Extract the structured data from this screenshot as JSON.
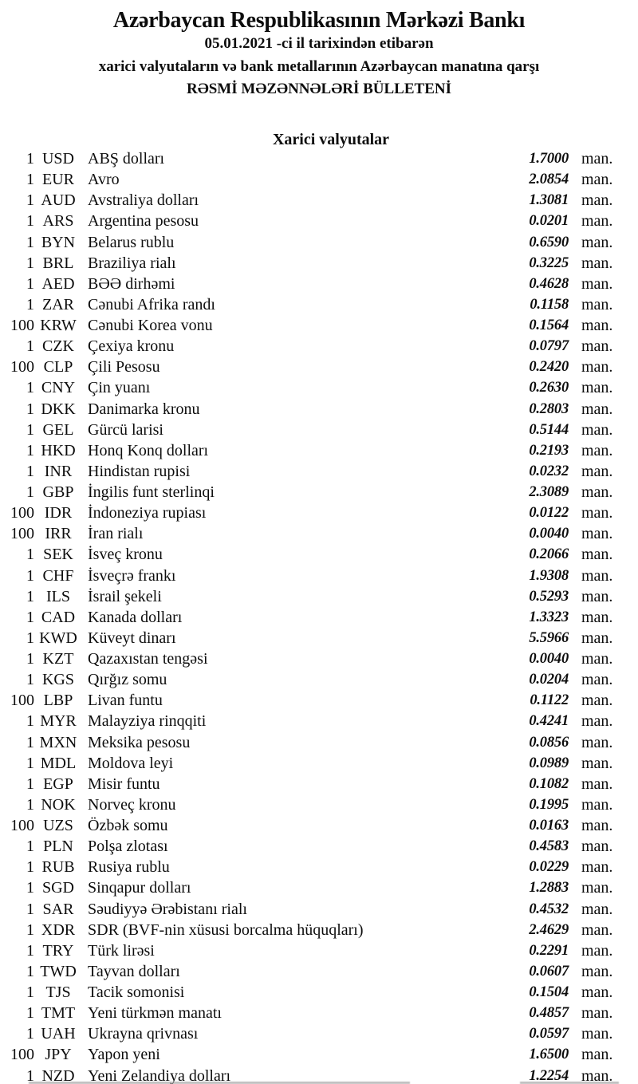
{
  "header": {
    "bank_name": "Azərbaycan Respublikasının Mərkəzi Bankı",
    "date_line": "05.01.2021 -ci il tarixindən etibarən",
    "subject_line": "xarici valyutaların və bank metallarının Azərbaycan manatına qarşı",
    "bulletin_line": "RƏSMİ MƏZƏNNƏLƏRİ BÜLLETENİ"
  },
  "section": {
    "title": "Xarici valyutalar"
  },
  "unit_label": "man.",
  "rates": [
    {
      "qty": "1",
      "code": "USD",
      "name": "ABŞ dolları",
      "rate": "1.7000"
    },
    {
      "qty": "1",
      "code": "EUR",
      "name": "Avro",
      "rate": "2.0854"
    },
    {
      "qty": "1",
      "code": "AUD",
      "name": "Avstraliya dolları",
      "rate": "1.3081"
    },
    {
      "qty": "1",
      "code": "ARS",
      "name": "Argentina pesosu",
      "rate": "0.0201"
    },
    {
      "qty": "1",
      "code": "BYN",
      "name": "Belarus rublu",
      "rate": "0.6590"
    },
    {
      "qty": "1",
      "code": "BRL",
      "name": "Braziliya rialı",
      "rate": "0.3225"
    },
    {
      "qty": "1",
      "code": "AED",
      "name": "BƏƏ dirhəmi",
      "rate": "0.4628"
    },
    {
      "qty": "1",
      "code": "ZAR",
      "name": "Cənubi Afrika randı",
      "rate": "0.1158"
    },
    {
      "qty": "100",
      "code": "KRW",
      "name": "Cənubi Korea vonu",
      "rate": "0.1564"
    },
    {
      "qty": "1",
      "code": "CZK",
      "name": "Çexiya kronu",
      "rate": "0.0797"
    },
    {
      "qty": "100",
      "code": "CLP",
      "name": "Çili Pesosu",
      "rate": "0.2420"
    },
    {
      "qty": "1",
      "code": "CNY",
      "name": "Çin yuanı",
      "rate": "0.2630"
    },
    {
      "qty": "1",
      "code": "DKK",
      "name": "Danimarka kronu",
      "rate": "0.2803"
    },
    {
      "qty": "1",
      "code": "GEL",
      "name": "Gürcü larisi",
      "rate": "0.5144"
    },
    {
      "qty": "1",
      "code": "HKD",
      "name": "Honq Konq dolları",
      "rate": "0.2193"
    },
    {
      "qty": "1",
      "code": "INR",
      "name": "Hindistan rupisi",
      "rate": "0.0232"
    },
    {
      "qty": "1",
      "code": "GBP",
      "name": "İngilis funt sterlinqi",
      "rate": "2.3089"
    },
    {
      "qty": "100",
      "code": "IDR",
      "name": "İndoneziya rupiası",
      "rate": "0.0122"
    },
    {
      "qty": "100",
      "code": "IRR",
      "name": "İran rialı",
      "rate": "0.0040"
    },
    {
      "qty": "1",
      "code": "SEK",
      "name": "İsveç kronu",
      "rate": "0.2066"
    },
    {
      "qty": "1",
      "code": "CHF",
      "name": "İsveçrə frankı",
      "rate": "1.9308"
    },
    {
      "qty": "1",
      "code": "ILS",
      "name": "İsrail şekeli",
      "rate": "0.5293"
    },
    {
      "qty": "1",
      "code": "CAD",
      "name": "Kanada dolları",
      "rate": "1.3323"
    },
    {
      "qty": "1",
      "code": "KWD",
      "name": "Küveyt dinarı",
      "rate": "5.5966"
    },
    {
      "qty": "1",
      "code": "KZT",
      "name": "Qazaxıstan tengəsi",
      "rate": "0.0040"
    },
    {
      "qty": "1",
      "code": "KGS",
      "name": "Qırğız somu",
      "rate": "0.0204"
    },
    {
      "qty": "100",
      "code": "LBP",
      "name": "Livan funtu",
      "rate": "0.1122"
    },
    {
      "qty": "1",
      "code": "MYR",
      "name": "Malayziya rinqqiti",
      "rate": "0.4241"
    },
    {
      "qty": "1",
      "code": "MXN",
      "name": "Meksika pesosu",
      "rate": "0.0856"
    },
    {
      "qty": "1",
      "code": "MDL",
      "name": "Moldova leyi",
      "rate": "0.0989"
    },
    {
      "qty": "1",
      "code": "EGP",
      "name": "Misir funtu",
      "rate": "0.1082"
    },
    {
      "qty": "1",
      "code": "NOK",
      "name": "Norveç kronu",
      "rate": "0.1995"
    },
    {
      "qty": "100",
      "code": "UZS",
      "name": "Özbək somu",
      "rate": "0.0163"
    },
    {
      "qty": "1",
      "code": "PLN",
      "name": "Polşa zlotası",
      "rate": "0.4583"
    },
    {
      "qty": "1",
      "code": "RUB",
      "name": "Rusiya rublu",
      "rate": "0.0229"
    },
    {
      "qty": "1",
      "code": "SGD",
      "name": "Sinqapur dolları",
      "rate": "1.2883"
    },
    {
      "qty": "1",
      "code": "SAR",
      "name": "Səudiyyə Ərəbistanı rialı",
      "rate": "0.4532"
    },
    {
      "qty": "1",
      "code": "XDR",
      "name": "SDR (BVF-nin xüsusi borcalma hüquqları)",
      "rate": "2.4629"
    },
    {
      "qty": "1",
      "code": "TRY",
      "name": "Türk lirəsi",
      "rate": "0.2291"
    },
    {
      "qty": "1",
      "code": "TWD",
      "name": "Tayvan dolları",
      "rate": "0.0607"
    },
    {
      "qty": "1",
      "code": "TJS",
      "name": "Tacik somonisi",
      "rate": "0.1504"
    },
    {
      "qty": "1",
      "code": "TMT",
      "name": "Yeni türkmən manatı",
      "rate": "0.4857"
    },
    {
      "qty": "1",
      "code": "UAH",
      "name": "Ukrayna qrivnası",
      "rate": "0.0597"
    },
    {
      "qty": "100",
      "code": "JPY",
      "name": "Yapon yeni",
      "rate": "1.6500"
    },
    {
      "qty": "1",
      "code": "NZD",
      "name": "Yeni Zelandiya dolları",
      "rate": "1.2254"
    }
  ]
}
